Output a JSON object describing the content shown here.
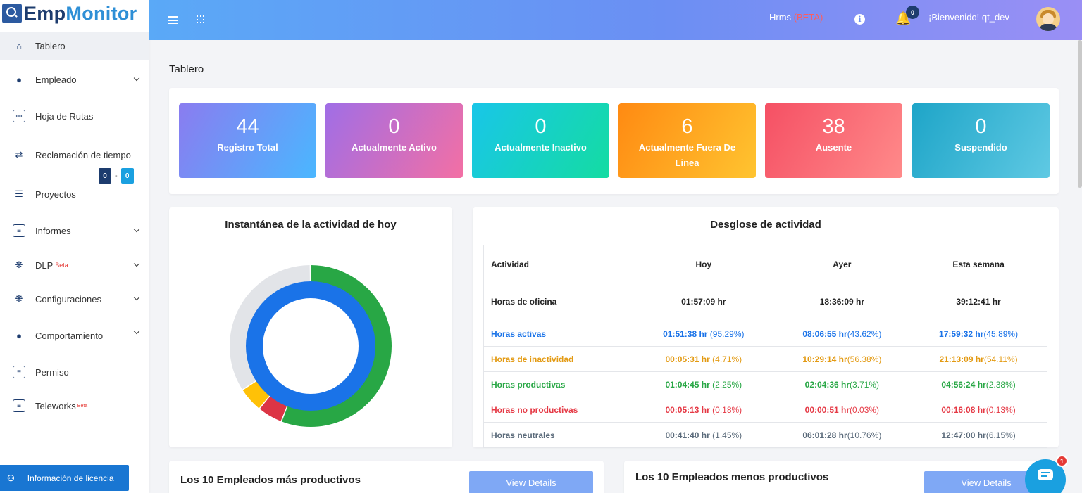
{
  "app": {
    "logo_main": "Emp",
    "logo_accent": "Monitor"
  },
  "topbar": {
    "hrms_label": "Hrms",
    "hrms_beta": "(BETA)",
    "notification_count": "0",
    "welcome_text": "¡Bienvenido! qt_dev"
  },
  "sidebar": {
    "items": [
      {
        "label": "Tablero",
        "icon": "home-icon"
      },
      {
        "label": "Empleado",
        "icon": "user-tie-icon"
      },
      {
        "label": "Hoja de Rutas",
        "icon": "calendar-icon"
      },
      {
        "label": "Reclamación de tiempo",
        "icon": "exchange-icon"
      },
      {
        "label": "Proyectos",
        "icon": "list-check-icon"
      },
      {
        "label": "Informes",
        "icon": "report-icon"
      },
      {
        "label": "DLP",
        "badge": "Beta",
        "icon": "gear-icon"
      },
      {
        "label": "Configuraciones",
        "icon": "gear-icon"
      },
      {
        "label": "Comportamiento",
        "icon": "users-cog-icon"
      },
      {
        "label": "Permiso",
        "icon": "document-icon"
      },
      {
        "label": "Teleworks",
        "badge": "Beta",
        "icon": "document-icon"
      }
    ],
    "claim_counts": {
      "left": "0",
      "sep": "-",
      "right": "0",
      "left_color": "#1d3c6e",
      "right_color": "#1aa0e0"
    },
    "license_button": "Información de licencia"
  },
  "page": {
    "title": "Tablero"
  },
  "stats": [
    {
      "value": "44",
      "label": "Registro Total",
      "gradient": [
        "#8a7cf0",
        "#4ab7ff"
      ]
    },
    {
      "value": "0",
      "label": "Actualmente Activo",
      "gradient": [
        "#a06ee6",
        "#f36fa4"
      ]
    },
    {
      "value": "0",
      "label": "Actualmente Inactivo",
      "gradient": [
        "#19c6e8",
        "#14dca2"
      ]
    },
    {
      "value": "6",
      "label": "Actualmente Fuera De Linea",
      "gradient": [
        "#ff8a12",
        "#ffc430"
      ]
    },
    {
      "value": "38",
      "label": "Ausente",
      "gradient": [
        "#f55064",
        "#ff8a8a"
      ]
    },
    {
      "value": "0",
      "label": "Suspendido",
      "gradient": [
        "#1ea5c8",
        "#5fc9e3"
      ]
    }
  ],
  "snapshot": {
    "title": "Instantánea de la actividad de hoy",
    "outer_ring": [
      {
        "name": "productive",
        "value": 56,
        "color": "#28a745"
      },
      {
        "name": "non-productive",
        "value": 5,
        "color": "#dc3545"
      },
      {
        "name": "idle",
        "value": 5,
        "color": "#ffc107"
      },
      {
        "name": "neutral",
        "value": 34,
        "color": "#e2e4e8"
      }
    ],
    "inner_ring": [
      {
        "name": "active",
        "value": 100,
        "color": "#1a73e8"
      }
    ]
  },
  "breakdown": {
    "title": "Desglose de actividad",
    "headers": [
      "Actividad",
      "Hoy",
      "Ayer",
      "Esta semana"
    ],
    "rows": [
      {
        "label": "Horas de oficina",
        "color": "#222",
        "cells": [
          [
            "01:57:09 hr",
            ""
          ],
          [
            "18:36:09 hr",
            ""
          ],
          [
            "39:12:41 hr",
            ""
          ]
        ]
      },
      {
        "label": "Horas activas",
        "color": "#1a73e8",
        "cells": [
          [
            "01:51:38 hr",
            " (95.29%)"
          ],
          [
            "08:06:55 hr",
            "(43.62%)"
          ],
          [
            "17:59:32 hr",
            "(45.89%)"
          ]
        ]
      },
      {
        "label": "Horas de inactividad",
        "color": "#e39a12",
        "cells": [
          [
            "00:05:31 hr",
            " (4.71%)"
          ],
          [
            "10:29:14 hr",
            "(56.38%)"
          ],
          [
            "21:13:09 hr",
            "(54.11%)"
          ]
        ]
      },
      {
        "label": "Horas productivas",
        "color": "#28a745",
        "cells": [
          [
            "01:04:45 hr",
            " (2.25%)"
          ],
          [
            "02:04:36 hr",
            "(3.71%)"
          ],
          [
            "04:56:24 hr",
            "(2.38%)"
          ]
        ]
      },
      {
        "label": "Horas no productivas",
        "color": "#e53945",
        "cells": [
          [
            "00:05:13 hr",
            " (0.18%)"
          ],
          [
            "00:00:51 hr",
            "(0.03%)"
          ],
          [
            "00:16:08 hr",
            "(0.13%)"
          ]
        ]
      },
      {
        "label": "Horas neutrales",
        "color": "#5a6a7a",
        "cells": [
          [
            "00:41:40 hr",
            " (1.45%)"
          ],
          [
            "06:01:28 hr",
            "(10.76%)"
          ],
          [
            "12:47:00 hr",
            "(6.15%)"
          ]
        ]
      }
    ]
  },
  "top_productive": {
    "title": "Los 10 Empleados más productivos",
    "button": "View Details"
  },
  "least_productive": {
    "title": "Los 10 Empleados menos productivos",
    "button": "View Details"
  },
  "chat": {
    "badge": "1"
  }
}
